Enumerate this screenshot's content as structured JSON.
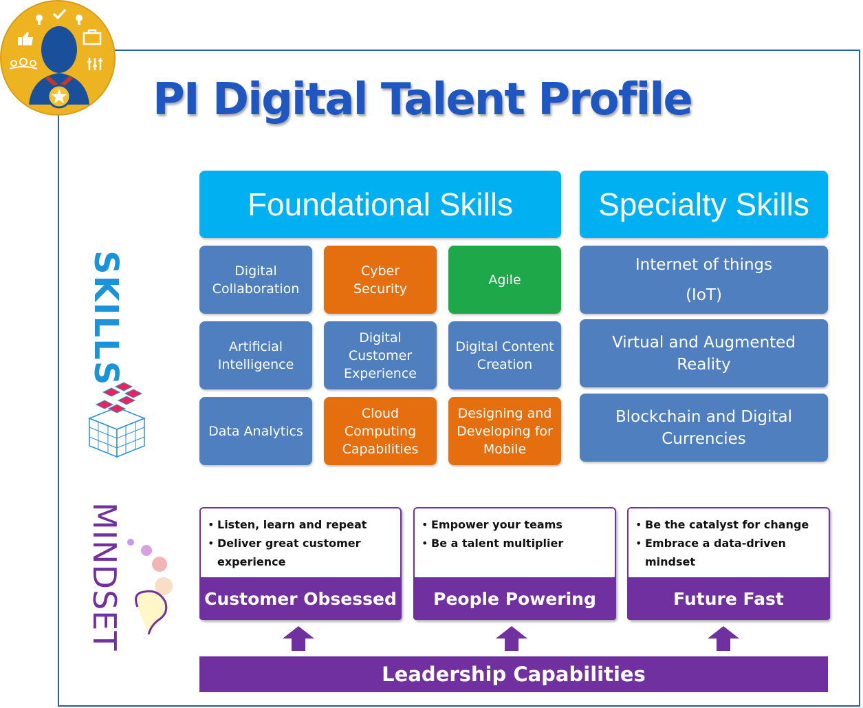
{
  "title": "PI Digital Talent Profile",
  "colors": {
    "header_blue": "#00b0f0",
    "tile_blue": "#4f7fbf",
    "tile_orange": "#e56e0f",
    "tile_green": "#1fa84a",
    "purple": "#7030a0",
    "title_blue": "#1f57c2",
    "badge_gold": "#eeb321"
  },
  "badge": {
    "icons": [
      "lightbulb-icon",
      "checkmark-icon",
      "thumbs-up-icon",
      "group-icon",
      "person-silhouette-icon",
      "portfolio-icon",
      "equalizer-icon",
      "star-medal-icon"
    ]
  },
  "skills_label": "SKILLS",
  "mindset_label": "MINDSET",
  "foundational": {
    "heading": "Foundational Skills",
    "tiles": [
      {
        "label": "Digital\nCollaboration",
        "color": "blue"
      },
      {
        "label": "Cyber\nSecurity",
        "color": "orange"
      },
      {
        "label": "Agile",
        "color": "green"
      },
      {
        "label": "Artificial\nIntelligence",
        "color": "blue"
      },
      {
        "label": "Digital\nCustomer\nExperience",
        "color": "blue"
      },
      {
        "label": "Digital Content\nCreation",
        "color": "blue"
      },
      {
        "label": "Data Analytics",
        "color": "blue"
      },
      {
        "label": "Cloud\nComputing\nCapabilities",
        "color": "orange"
      },
      {
        "label": "Designing and\nDeveloping for\nMobile",
        "color": "orange"
      }
    ]
  },
  "specialty": {
    "heading": "Specialty Skills",
    "tiles": [
      {
        "label": "Internet of things\n(IoT)"
      },
      {
        "label": "Virtual and Augmented\nReality"
      },
      {
        "label": "Blockchain and Digital\nCurrencies"
      }
    ]
  },
  "mindset": {
    "cards": [
      {
        "label": "Customer Obsessed",
        "bullets": [
          "Listen, learn and repeat",
          "Deliver great customer experience"
        ]
      },
      {
        "label": "People Powering",
        "bullets": [
          "Empower your teams",
          "Be a talent multiplier"
        ]
      },
      {
        "label": "Future Fast",
        "bullets": [
          "Be the catalyst for change",
          "Embrace  a data-driven mindset"
        ]
      }
    ]
  },
  "leadership": "Leadership Capabilities"
}
